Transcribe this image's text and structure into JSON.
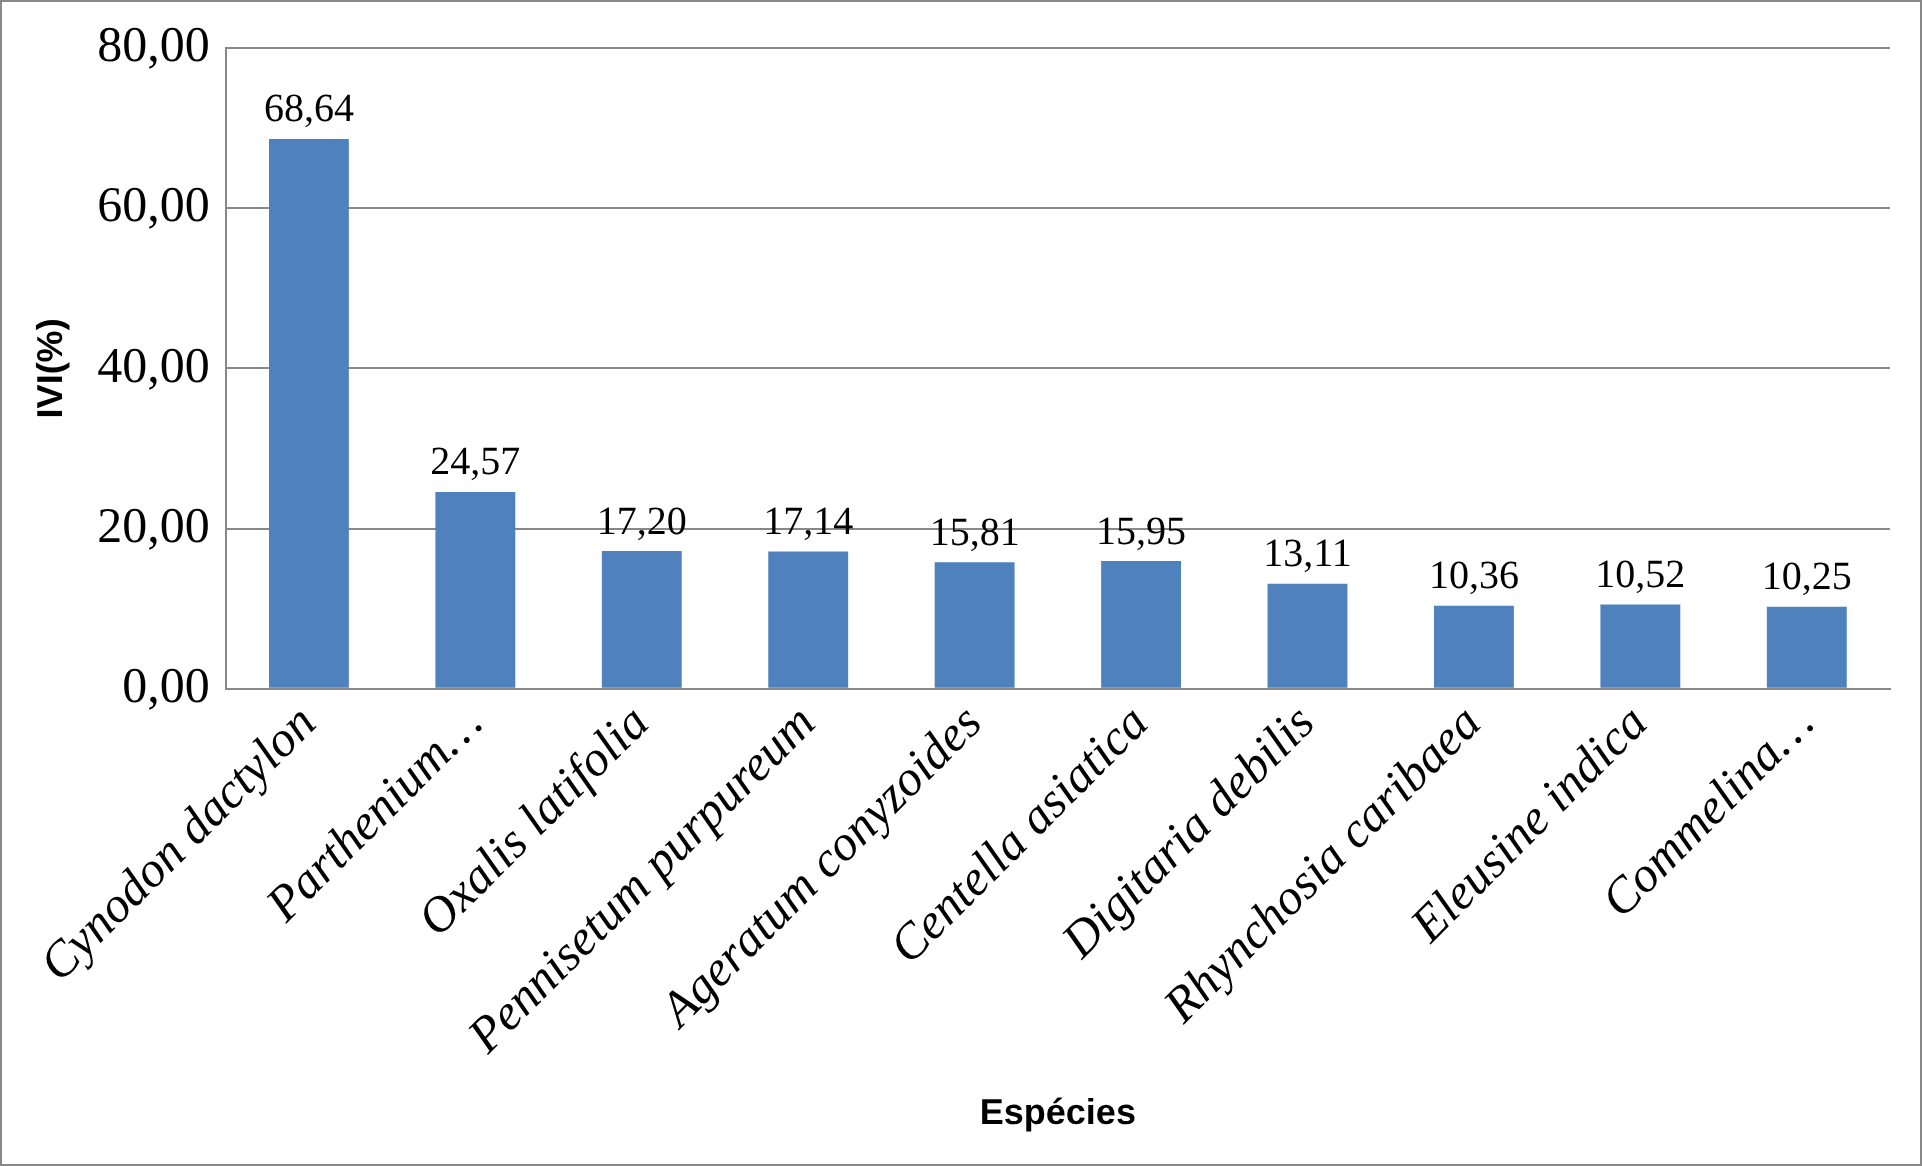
{
  "chart_data": {
    "type": "bar",
    "xlabel": "Espécies",
    "ylabel": "IVI(%)",
    "categories": [
      "Cynodon dactylon",
      "Parthenium…",
      "Oxalis latifolia",
      "Pennisetum purpureum",
      "Ageratum conyzoides",
      "Centella asiatica",
      "Digitaria debilis",
      "Rhynchosia caribaea",
      "Eleusine indica",
      "Commelina…"
    ],
    "values": [
      68.64,
      24.57,
      17.2,
      17.14,
      15.81,
      15.95,
      13.11,
      10.36,
      10.52,
      10.25
    ],
    "value_labels": [
      "68,64",
      "24,57",
      "17,20",
      "17,14",
      "15,81",
      "15,95",
      "13,11",
      "10,36",
      "10,52",
      "10,25"
    ],
    "color": "#4f81bd",
    "ylim": [
      0,
      80
    ],
    "yticks": [
      {
        "value": 0,
        "label": "0,00"
      },
      {
        "value": 20,
        "label": "20,00"
      },
      {
        "value": 40,
        "label": "40,00"
      },
      {
        "value": 60,
        "label": "60,00"
      },
      {
        "value": 80,
        "label": "80,00"
      }
    ],
    "grid": "y",
    "legend": false
  }
}
